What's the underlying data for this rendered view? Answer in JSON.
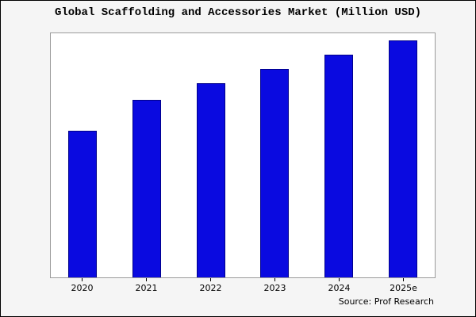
{
  "title": "Global Scaffolding and Accessories Market (Million USD)",
  "source": "Source: Prof Research",
  "colors": {
    "bar_fill": "#0a0ae0",
    "bar_edge": "#00008b",
    "figure_background": "#f5f5f5",
    "plot_background": "#ffffff",
    "border": "#000000"
  },
  "chart_data": {
    "type": "bar",
    "title": "Global Scaffolding and Accessories Market (Million USD)",
    "categories": [
      "2020",
      "2021",
      "2022",
      "2023",
      "2024",
      "2025e"
    ],
    "values": [
      62,
      75,
      82,
      88,
      94,
      100
    ],
    "xlabel": "",
    "ylabel": "",
    "ylim": [
      0,
      103
    ],
    "grid": false,
    "legend": "none",
    "annotation": "Source: Prof Research",
    "note": "No y-axis tick labels are shown in the chart; values are relative estimates with 2025e normalized to 100."
  }
}
